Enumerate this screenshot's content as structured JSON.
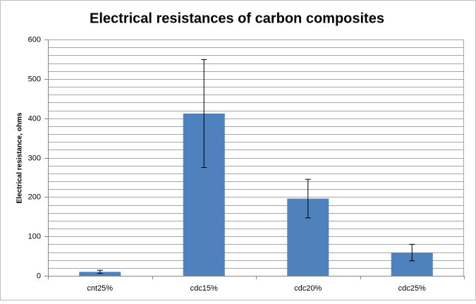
{
  "chart_data": {
    "type": "bar",
    "title": "Electrical resistances of carbon composites",
    "y_label": "Electrical resistance, ohms",
    "categories": [
      "cnt25%",
      "cdc15%",
      "cdc20%",
      "cdc25%"
    ],
    "values": [
      10,
      412,
      196,
      59
    ],
    "errors": [
      4,
      137,
      49,
      21
    ],
    "color": "#4f81bd",
    "ylim": [
      0,
      600
    ],
    "yticks": [
      0,
      100,
      200,
      300,
      400,
      500,
      600
    ],
    "y_minor_ticks": [
      20,
      40,
      60,
      80,
      120,
      140,
      160,
      180,
      220,
      240,
      260,
      280,
      320,
      340,
      360,
      380,
      420,
      440,
      460,
      480,
      520,
      540,
      560,
      580
    ],
    "grid": true
  }
}
